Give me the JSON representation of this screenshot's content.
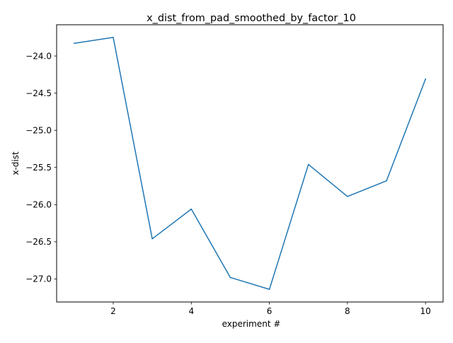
{
  "chart_data": {
    "type": "line",
    "title": "x_dist_from_pad_smoothed_by_factor_10",
    "xlabel": "experiment #",
    "ylabel": "x-dist",
    "x": [
      1,
      2,
      3,
      4,
      5,
      6,
      7,
      8,
      9,
      10
    ],
    "series": [
      {
        "values": [
          -23.83,
          -23.75,
          -26.46,
          -26.06,
          -26.98,
          -27.14,
          -25.46,
          -25.89,
          -25.68,
          -24.31
        ],
        "color": "#1f77b4"
      }
    ],
    "xlim": [
      0.55,
      10.45
    ],
    "ylim": [
      -27.31,
      -23.58
    ],
    "xticks": [
      2,
      4,
      6,
      8,
      10
    ],
    "xtick_labels": [
      "2",
      "4",
      "6",
      "8",
      "10"
    ],
    "yticks": [
      -27.0,
      -26.5,
      -26.0,
      -25.5,
      -25.0,
      -24.5,
      -24.0
    ],
    "ytick_labels": [
      "−27.0",
      "−26.5",
      "−26.0",
      "−25.5",
      "−25.0",
      "−24.5",
      "−24.0"
    ],
    "grid": false,
    "legend": false
  }
}
